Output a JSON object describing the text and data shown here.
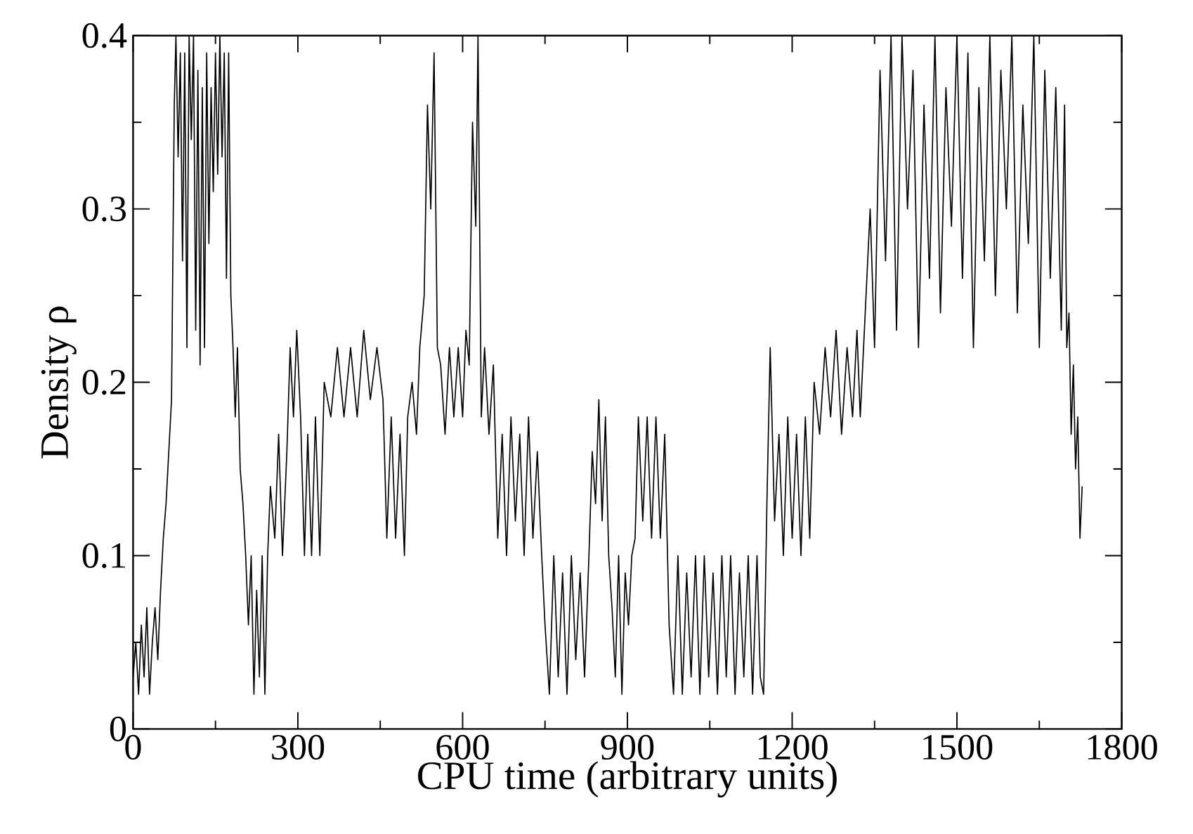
{
  "chart_data": {
    "type": "line",
    "xlabel": "CPU time (arbitrary units)",
    "ylabel": "Density ρ",
    "xlim": [
      0,
      1800
    ],
    "ylim": [
      0,
      0.4
    ],
    "xticks": [
      0,
      300,
      600,
      900,
      1200,
      1500,
      1800
    ],
    "yticks": [
      0,
      0.1,
      0.2,
      0.3,
      0.4
    ],
    "marker": "none",
    "line_style": "solid",
    "series": [
      {
        "color": "#000000",
        "x": [
          0,
          5,
          10,
          15,
          20,
          25,
          30,
          35,
          40,
          45,
          50,
          55,
          60,
          65,
          70,
          75,
          78,
          82,
          86,
          90,
          94,
          98,
          102,
          106,
          110,
          114,
          118,
          122,
          126,
          130,
          134,
          138,
          142,
          146,
          150,
          154,
          158,
          162,
          166,
          170,
          174,
          178,
          182,
          186,
          190,
          195,
          200,
          205,
          210,
          215,
          220,
          225,
          230,
          235,
          240,
          245,
          250,
          258,
          265,
          272,
          280,
          286,
          292,
          298,
          305,
          312,
          318,
          325,
          332,
          340,
          348,
          360,
          372,
          384,
          396,
          408,
          420,
          432,
          444,
          455,
          462,
          470,
          478,
          486,
          494,
          500,
          508,
          516,
          522,
          530,
          536,
          542,
          548,
          554,
          560,
          568,
          576,
          584,
          592,
          600,
          606,
          612,
          618,
          624,
          628,
          634,
          640,
          648,
          656,
          664,
          672,
          680,
          688,
          696,
          704,
          712,
          720,
          728,
          736,
          744,
          750,
          758,
          766,
          774,
          782,
          790,
          798,
          806,
          814,
          822,
          830,
          836,
          842,
          848,
          854,
          860,
          866,
          872,
          878,
          884,
          890,
          896,
          902,
          908,
          914,
          920,
          928,
          936,
          944,
          952,
          960,
          968,
          976,
          984,
          992,
          1000,
          1008,
          1016,
          1024,
          1032,
          1040,
          1048,
          1056,
          1064,
          1072,
          1080,
          1088,
          1096,
          1104,
          1112,
          1120,
          1128,
          1136,
          1142,
          1148,
          1154,
          1160,
          1168,
          1176,
          1184,
          1192,
          1200,
          1208,
          1216,
          1224,
          1232,
          1240,
          1250,
          1260,
          1270,
          1280,
          1290,
          1300,
          1310,
          1318,
          1324,
          1330,
          1336,
          1342,
          1350,
          1360,
          1370,
          1380,
          1390,
          1400,
          1410,
          1420,
          1430,
          1440,
          1450,
          1460,
          1470,
          1480,
          1490,
          1500,
          1510,
          1520,
          1530,
          1540,
          1550,
          1560,
          1570,
          1580,
          1590,
          1600,
          1610,
          1620,
          1630,
          1640,
          1650,
          1660,
          1670,
          1680,
          1690,
          1696,
          1700,
          1704,
          1708,
          1712,
          1716,
          1720,
          1724,
          1728
        ],
        "values": [
          0.03,
          0.05,
          0.02,
          0.06,
          0.03,
          0.07,
          0.02,
          0.05,
          0.07,
          0.04,
          0.08,
          0.11,
          0.13,
          0.16,
          0.19,
          0.36,
          0.4,
          0.33,
          0.39,
          0.27,
          0.39,
          0.22,
          0.4,
          0.34,
          0.4,
          0.23,
          0.38,
          0.21,
          0.37,
          0.22,
          0.39,
          0.28,
          0.37,
          0.31,
          0.39,
          0.32,
          0.4,
          0.33,
          0.39,
          0.26,
          0.39,
          0.25,
          0.22,
          0.18,
          0.22,
          0.15,
          0.13,
          0.1,
          0.06,
          0.1,
          0.02,
          0.08,
          0.03,
          0.1,
          0.02,
          0.1,
          0.14,
          0.11,
          0.17,
          0.1,
          0.16,
          0.22,
          0.18,
          0.23,
          0.18,
          0.1,
          0.17,
          0.1,
          0.18,
          0.1,
          0.2,
          0.18,
          0.22,
          0.18,
          0.22,
          0.18,
          0.23,
          0.19,
          0.22,
          0.19,
          0.11,
          0.18,
          0.11,
          0.17,
          0.1,
          0.18,
          0.2,
          0.17,
          0.22,
          0.25,
          0.36,
          0.3,
          0.39,
          0.22,
          0.21,
          0.17,
          0.22,
          0.18,
          0.22,
          0.18,
          0.23,
          0.21,
          0.35,
          0.29,
          0.4,
          0.18,
          0.22,
          0.17,
          0.21,
          0.11,
          0.17,
          0.1,
          0.18,
          0.12,
          0.17,
          0.1,
          0.18,
          0.11,
          0.16,
          0.1,
          0.06,
          0.02,
          0.1,
          0.03,
          0.09,
          0.02,
          0.1,
          0.04,
          0.09,
          0.03,
          0.1,
          0.16,
          0.13,
          0.19,
          0.12,
          0.18,
          0.1,
          0.07,
          0.03,
          0.1,
          0.02,
          0.09,
          0.06,
          0.1,
          0.11,
          0.18,
          0.12,
          0.18,
          0.11,
          0.18,
          0.11,
          0.17,
          0.06,
          0.02,
          0.1,
          0.02,
          0.09,
          0.03,
          0.1,
          0.02,
          0.1,
          0.03,
          0.09,
          0.02,
          0.1,
          0.03,
          0.1,
          0.02,
          0.09,
          0.03,
          0.1,
          0.02,
          0.1,
          0.03,
          0.02,
          0.13,
          0.22,
          0.12,
          0.17,
          0.1,
          0.18,
          0.11,
          0.17,
          0.1,
          0.18,
          0.11,
          0.2,
          0.17,
          0.22,
          0.18,
          0.23,
          0.17,
          0.22,
          0.18,
          0.23,
          0.18,
          0.22,
          0.26,
          0.3,
          0.22,
          0.38,
          0.27,
          0.4,
          0.23,
          0.4,
          0.3,
          0.38,
          0.22,
          0.36,
          0.26,
          0.4,
          0.24,
          0.37,
          0.29,
          0.4,
          0.26,
          0.39,
          0.22,
          0.37,
          0.27,
          0.4,
          0.25,
          0.38,
          0.3,
          0.4,
          0.24,
          0.36,
          0.28,
          0.4,
          0.22,
          0.38,
          0.26,
          0.37,
          0.23,
          0.36,
          0.22,
          0.24,
          0.17,
          0.21,
          0.15,
          0.18,
          0.11,
          0.14
        ]
      }
    ]
  }
}
